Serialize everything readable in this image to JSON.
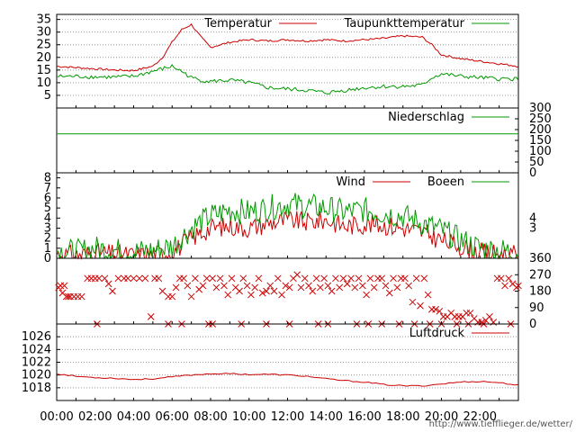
{
  "page_url": "http://www.tiefflieger.de/wetter/",
  "x_axis": {
    "ticks": [
      "00:00",
      "02:00",
      "04:00",
      "06:00",
      "08:00",
      "10:00",
      "12:00",
      "14:00",
      "16:00",
      "18:00",
      "20:00",
      "22:00"
    ]
  },
  "chart_data": [
    {
      "type": "line",
      "panel": "temperature",
      "ylim": [
        0,
        37
      ],
      "y_ticks": [
        5,
        10,
        15,
        20,
        25,
        30,
        35
      ],
      "grid": true,
      "legend_position": "top-right",
      "x": [
        0,
        1,
        2,
        3,
        4,
        5,
        5.5,
        6,
        6.5,
        7,
        7.5,
        8,
        9,
        10,
        11,
        12,
        13,
        14,
        15,
        16,
        17,
        18,
        19,
        19.5,
        20,
        21,
        22,
        23,
        24
      ],
      "series": [
        {
          "name": "Temperatur",
          "color": "#cc0000",
          "values": [
            16.5,
            16,
            15.5,
            15,
            14.8,
            16.5,
            20,
            26,
            31,
            33,
            28,
            24,
            26,
            27,
            26.5,
            27,
            26.5,
            27,
            26.5,
            27,
            27.5,
            28.5,
            28,
            25,
            21,
            19.5,
            18.5,
            17.5,
            16.5
          ]
        },
        {
          "name": "Taupunkttemperatur",
          "color": "#009900",
          "values": [
            12.5,
            12.5,
            12.3,
            12.2,
            12.5,
            14.5,
            15.5,
            16.5,
            14.5,
            12,
            11,
            10.5,
            11,
            10,
            8,
            7.5,
            7,
            6,
            7,
            8,
            8.5,
            8.5,
            9,
            12,
            13.5,
            12.5,
            12,
            11.5,
            11.5
          ]
        }
      ]
    },
    {
      "type": "line",
      "panel": "precipitation",
      "ylim": [
        0,
        300
      ],
      "y_ticks": [
        0,
        50,
        100,
        150,
        200,
        250,
        300
      ],
      "y_axis_side": "right",
      "legend_position": "top-right",
      "x": [
        0,
        24
      ],
      "series": [
        {
          "name": "Niederschlag",
          "color": "#009900",
          "values": [
            180,
            180
          ]
        }
      ]
    },
    {
      "type": "line",
      "panel": "wind",
      "ylim": [
        0,
        8.5
      ],
      "y_ticks": [
        0,
        1,
        2,
        3,
        4,
        5,
        6,
        7,
        8
      ],
      "y_ticks_right": [
        "3",
        "4"
      ],
      "legend_position": "top-right",
      "x": [
        0,
        1,
        2,
        3,
        4,
        5,
        6,
        7,
        8,
        9,
        10,
        11,
        12,
        13,
        14,
        15,
        16,
        17,
        18,
        19,
        20,
        21,
        22,
        23,
        24
      ],
      "series": [
        {
          "name": "Wind",
          "color": "#cc0000",
          "values": [
            0.4,
            0.3,
            0.6,
            0.4,
            0.3,
            0.4,
            0.6,
            2,
            3,
            3.2,
            3,
            3.5,
            3.8,
            3.6,
            3.8,
            3.2,
            3.4,
            3.3,
            3,
            2.6,
            1.8,
            1.2,
            0.6,
            0.4,
            0.3
          ]
        },
        {
          "name": "Boeen",
          "color": "#009900",
          "values": [
            0.8,
            0.6,
            1,
            0.8,
            0.6,
            0.8,
            1.2,
            3,
            4.2,
            4.8,
            4.6,
            5,
            5.4,
            5.2,
            5,
            4.6,
            4.8,
            4.5,
            4.2,
            3.5,
            2.8,
            1.8,
            1,
            0.8,
            0.6
          ]
        }
      ]
    },
    {
      "type": "scatter",
      "panel": "wind_direction",
      "ylim": [
        0,
        360
      ],
      "y_ticks": [
        0,
        90,
        180,
        270,
        360
      ],
      "y_axis_side": "right",
      "marker": "x",
      "color": "#cc0000",
      "points": [
        [
          0.1,
          200
        ],
        [
          0.2,
          210
        ],
        [
          0.3,
          170
        ],
        [
          0.4,
          210
        ],
        [
          0.5,
          150
        ],
        [
          0.6,
          150
        ],
        [
          0.7,
          150
        ],
        [
          0.9,
          150
        ],
        [
          1.1,
          150
        ],
        [
          1.3,
          150
        ],
        [
          1.6,
          250
        ],
        [
          1.8,
          250
        ],
        [
          2,
          250
        ],
        [
          2.2,
          250
        ],
        [
          2.5,
          250
        ],
        [
          2.7,
          220
        ],
        [
          2.9,
          180
        ],
        [
          3.2,
          250
        ],
        [
          3.5,
          250
        ],
        [
          3.7,
          250
        ],
        [
          4,
          250
        ],
        [
          4.3,
          250
        ],
        [
          4.6,
          250
        ],
        [
          4.9,
          40
        ],
        [
          5.1,
          250
        ],
        [
          5.3,
          250
        ],
        [
          5.5,
          180
        ],
        [
          5.8,
          150
        ],
        [
          6,
          150
        ],
        [
          6.2,
          200
        ],
        [
          6.4,
          250
        ],
        [
          6.6,
          250
        ],
        [
          6.8,
          210
        ],
        [
          7,
          150
        ],
        [
          7.2,
          250
        ],
        [
          7.4,
          190
        ],
        [
          7.6,
          210
        ],
        [
          7.8,
          250
        ],
        [
          8.1,
          250
        ],
        [
          8.3,
          200
        ],
        [
          8.5,
          250
        ],
        [
          8.7,
          210
        ],
        [
          8.9,
          160
        ],
        [
          9.1,
          250
        ],
        [
          9.3,
          200
        ],
        [
          9.5,
          180
        ],
        [
          9.7,
          250
        ],
        [
          9.9,
          210
        ],
        [
          10.1,
          160
        ],
        [
          10.3,
          200
        ],
        [
          10.5,
          250
        ],
        [
          10.7,
          170
        ],
        [
          10.9,
          180
        ],
        [
          11.1,
          210
        ],
        [
          11.3,
          180
        ],
        [
          11.5,
          250
        ],
        [
          11.7,
          160
        ],
        [
          11.9,
          210
        ],
        [
          12.1,
          200
        ],
        [
          12.3,
          250
        ],
        [
          12.5,
          270
        ],
        [
          12.7,
          200
        ],
        [
          12.9,
          250
        ],
        [
          13.1,
          210
        ],
        [
          13.3,
          180
        ],
        [
          13.5,
          250
        ],
        [
          13.7,
          200
        ],
        [
          13.9,
          250
        ],
        [
          14.1,
          210
        ],
        [
          14.3,
          180
        ],
        [
          14.5,
          250
        ],
        [
          14.7,
          200
        ],
        [
          14.9,
          250
        ],
        [
          15.1,
          220
        ],
        [
          15.3,
          250
        ],
        [
          15.5,
          200
        ],
        [
          15.7,
          250
        ],
        [
          15.9,
          210
        ],
        [
          16.1,
          160
        ],
        [
          16.3,
          250
        ],
        [
          16.5,
          200
        ],
        [
          16.7,
          250
        ],
        [
          16.9,
          250
        ],
        [
          17.1,
          210
        ],
        [
          17.3,
          170
        ],
        [
          17.5,
          250
        ],
        [
          17.7,
          200
        ],
        [
          17.9,
          250
        ],
        [
          18.1,
          250
        ],
        [
          18.3,
          210
        ],
        [
          18.5,
          120
        ],
        [
          18.7,
          250
        ],
        [
          18.9,
          100
        ],
        [
          19.1,
          250
        ],
        [
          19.3,
          160
        ],
        [
          19.5,
          80
        ],
        [
          19.7,
          80
        ],
        [
          19.9,
          70
        ],
        [
          20.1,
          40
        ],
        [
          20.3,
          40
        ],
        [
          20.5,
          60
        ],
        [
          20.7,
          40
        ],
        [
          20.9,
          40
        ],
        [
          21.1,
          40
        ],
        [
          21.3,
          60
        ],
        [
          21.5,
          60
        ],
        [
          21.7,
          30
        ],
        [
          21.9,
          10
        ],
        [
          22.1,
          10
        ],
        [
          22.3,
          20
        ],
        [
          22.5,
          40
        ],
        [
          22.7,
          10
        ],
        [
          22.9,
          250
        ],
        [
          23.1,
          250
        ],
        [
          23.3,
          210
        ],
        [
          23.5,
          250
        ],
        [
          23.7,
          220
        ],
        [
          23.9,
          200
        ],
        [
          24,
          210
        ],
        [
          2.1,
          0
        ],
        [
          5.8,
          0
        ],
        [
          6.5,
          0
        ],
        [
          7.9,
          0
        ],
        [
          8.1,
          0
        ],
        [
          9.6,
          0
        ],
        [
          10.9,
          0
        ],
        [
          12.1,
          0
        ],
        [
          13.6,
          0
        ],
        [
          14.1,
          0
        ],
        [
          15.6,
          0
        ],
        [
          16.2,
          0
        ],
        [
          16.9,
          0
        ],
        [
          17.8,
          0
        ],
        [
          18.6,
          0
        ],
        [
          19.4,
          0
        ],
        [
          20.0,
          0
        ],
        [
          20.8,
          0
        ],
        [
          21.4,
          0
        ],
        [
          22.2,
          0
        ],
        [
          23.6,
          0
        ]
      ]
    },
    {
      "type": "line",
      "panel": "pressure",
      "ylim": [
        1016,
        1028
      ],
      "y_ticks": [
        1018,
        1020,
        1022,
        1024,
        1026
      ],
      "grid": true,
      "legend_position": "top-right",
      "x": [
        0,
        1,
        2,
        3,
        4,
        5,
        6,
        7,
        8,
        9,
        10,
        11,
        12,
        13,
        14,
        15,
        16,
        17,
        18,
        19,
        20,
        21,
        22,
        23,
        24
      ],
      "series": [
        {
          "name": "Luftdruck",
          "color": "#cc0000",
          "values": [
            1020.2,
            1019.8,
            1019.6,
            1019.5,
            1019.3,
            1019.4,
            1019.7,
            1020,
            1020.2,
            1020.2,
            1020.1,
            1020.1,
            1020,
            1019.8,
            1019.4,
            1019.1,
            1018.9,
            1018.5,
            1018.3,
            1018.3,
            1018.6,
            1018.9,
            1019,
            1018.8,
            1018.4
          ]
        }
      ]
    }
  ]
}
